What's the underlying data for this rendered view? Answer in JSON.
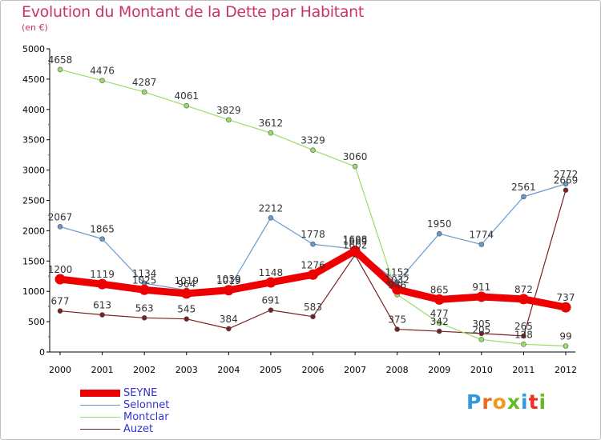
{
  "header": {
    "title": "Evolution du Montant de la Dette par Habitant",
    "subtitle": "(en €)"
  },
  "logo": {
    "letters": [
      "P",
      "r",
      "o",
      "x",
      "i",
      "t",
      "i"
    ],
    "colors": [
      "#3399dd",
      "#ee6622",
      "#ee9922",
      "#66bb22",
      "#3399dd",
      "#ee3322",
      "#66bb22"
    ]
  },
  "chart_data": {
    "type": "line",
    "x": [
      "2000",
      "2001",
      "2002",
      "2003",
      "2004",
      "2005",
      "2006",
      "2007",
      "2008",
      "2009",
      "2010",
      "2011",
      "2012"
    ],
    "ylim": [
      0,
      5000
    ],
    "yticks": [
      0,
      500,
      1000,
      1500,
      2000,
      2500,
      3000,
      3500,
      4000,
      4500,
      5000
    ],
    "title": "Evolution du Montant de la Dette par Habitant",
    "ylabel": "(en €)",
    "grid": false,
    "legend_position": "bottom-left",
    "series": [
      {
        "name": "SEYNE",
        "color": "#ee0000",
        "emphasis": true,
        "values": [
          1200,
          1119,
          1025,
          964,
          1019,
          1148,
          1276,
          1669,
          1032,
          865,
          911,
          872,
          737
        ],
        "labels": [
          "1200",
          "1119",
          "1025",
          "964",
          "1019",
          "1148",
          "1276",
          "1669",
          "1032",
          "865",
          "911",
          "872",
          "737"
        ]
      },
      {
        "name": "Selonnet",
        "color": "#6699cc",
        "values": [
          2067,
          1865,
          1134,
          1019,
          1039,
          2212,
          1778,
          1698,
          1152,
          1950,
          1774,
          2561,
          2772
        ],
        "labels": [
          "2067",
          "1865",
          "1134",
          "1019",
          "1039",
          "2212",
          "1778",
          "1698",
          "1152",
          "1950",
          "1774",
          "2561",
          "2772"
        ]
      },
      {
        "name": "Montclar",
        "color": "#99dd66",
        "values": [
          4658,
          4476,
          4287,
          4061,
          3829,
          3612,
          3329,
          3060,
          946,
          477,
          205,
          128,
          99
        ],
        "labels": [
          "4658",
          "4476",
          "4287",
          "4061",
          "3829",
          "3612",
          "3329",
          "3060",
          "946",
          "477",
          "205",
          "128",
          "99"
        ]
      },
      {
        "name": "Auzet",
        "color": "#772222",
        "values": [
          677,
          613,
          563,
          545,
          384,
          691,
          583,
          1602,
          375,
          342,
          305,
          265,
          2669
        ],
        "labels": [
          "677",
          "613",
          "563",
          "545",
          "384",
          "691",
          "583",
          "1602",
          "375",
          "342",
          "305",
          "265",
          "2669"
        ]
      }
    ]
  }
}
